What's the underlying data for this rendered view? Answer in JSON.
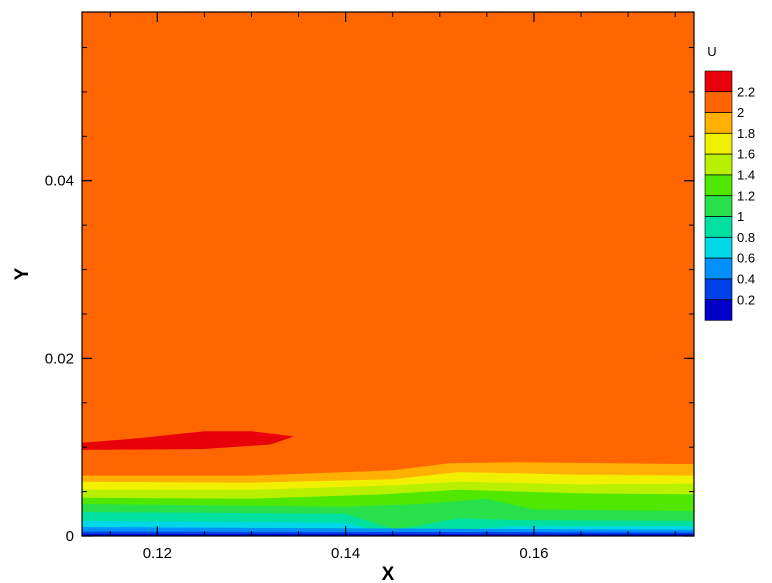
{
  "chart_data": {
    "type": "heatmap",
    "subtype": "filled-contour",
    "xlabel": "X",
    "ylabel": "Y",
    "xlim": [
      0.112,
      0.177
    ],
    "ylim": [
      0,
      0.059
    ],
    "xticks": [
      0.12,
      0.14,
      0.16
    ],
    "xtick_labels": [
      "0.12",
      "0.14",
      "0.16"
    ],
    "yticks": [
      0,
      0.02,
      0.04
    ],
    "ytick_labels": [
      "0",
      "0.02",
      "0.04"
    ],
    "grid": false,
    "legend": {
      "title": "U",
      "placement": "right",
      "levels": [
        {
          "label": "2.2",
          "color": "#e8000b"
        },
        {
          "label": "2",
          "color": "#ff6600"
        },
        {
          "label": "1.8",
          "color": "#ffb000"
        },
        {
          "label": "1.6",
          "color": "#f0f000"
        },
        {
          "label": "1.4",
          "color": "#b8f000"
        },
        {
          "label": "1.2",
          "color": "#50e800"
        },
        {
          "label": "1",
          "color": "#28e04a"
        },
        {
          "label": "0.8",
          "color": "#00e0a0"
        },
        {
          "label": "0.6",
          "color": "#00d8e8"
        },
        {
          "label": "0.4",
          "color": "#0090ff"
        },
        {
          "label": "0.2",
          "color": "#0040e8"
        },
        {
          "label": "",
          "color": "#0000c8"
        }
      ]
    },
    "field": {
      "background_level": "2",
      "bands": [
        {
          "level": "2.2",
          "polygon": [
            [
              0.112,
              0.0105
            ],
            [
              0.118,
              0.011
            ],
            [
              0.125,
              0.0118
            ],
            [
              0.13,
              0.0118
            ],
            [
              0.1345,
              0.0112
            ],
            [
              0.132,
              0.0103
            ],
            [
              0.125,
              0.0098
            ],
            [
              0.112,
              0.0097
            ]
          ]
        },
        {
          "level": "1.8",
          "polygon": [
            [
              0.112,
              0.0068
            ],
            [
              0.13,
              0.0068
            ],
            [
              0.145,
              0.0074
            ],
            [
              0.151,
              0.0082
            ],
            [
              0.158,
              0.0083
            ],
            [
              0.177,
              0.0081
            ],
            [
              0.177,
              0
            ],
            [
              0.112,
              0
            ]
          ]
        },
        {
          "level": "1.6",
          "polygon": [
            [
              0.112,
              0.0061
            ],
            [
              0.13,
              0.006
            ],
            [
              0.145,
              0.0064
            ],
            [
              0.152,
              0.0072
            ],
            [
              0.165,
              0.0069
            ],
            [
              0.177,
              0.0068
            ],
            [
              0.177,
              0
            ],
            [
              0.112,
              0
            ]
          ]
        },
        {
          "level": "1.4",
          "polygon": [
            [
              0.112,
              0.0052
            ],
            [
              0.13,
              0.0052
            ],
            [
              0.145,
              0.0057
            ],
            [
              0.152,
              0.0061
            ],
            [
              0.165,
              0.0058
            ],
            [
              0.177,
              0.0059
            ],
            [
              0.177,
              0
            ],
            [
              0.112,
              0
            ]
          ]
        },
        {
          "level": "1.2",
          "polygon": [
            [
              0.112,
              0.0043
            ],
            [
              0.13,
              0.0042
            ],
            [
              0.144,
              0.0047
            ],
            [
              0.152,
              0.0052
            ],
            [
              0.165,
              0.0048
            ],
            [
              0.177,
              0.0047
            ],
            [
              0.177,
              0
            ],
            [
              0.112,
              0
            ]
          ]
        },
        {
          "level": "1",
          "polygon": [
            [
              0.112,
              0.0036
            ],
            [
              0.14,
              0.0033
            ],
            [
              0.148,
              0.0036
            ],
            [
              0.155,
              0.0042
            ],
            [
              0.16,
              0.003
            ],
            [
              0.177,
              0.0028
            ],
            [
              0.177,
              0
            ],
            [
              0.112,
              0
            ]
          ]
        },
        {
          "level": "0.8",
          "polygon": [
            [
              0.112,
              0.0027
            ],
            [
              0.14,
              0.0025
            ],
            [
              0.145,
              0.0008
            ],
            [
              0.147,
              0.001
            ],
            [
              0.152,
              0.002
            ],
            [
              0.158,
              0.0018
            ],
            [
              0.177,
              0.0017
            ],
            [
              0.177,
              0
            ],
            [
              0.112,
              0
            ]
          ]
        },
        {
          "level": "0.6",
          "polygon": [
            [
              0.112,
              0.0017
            ],
            [
              0.14,
              0.0015
            ],
            [
              0.144,
              0.0004
            ],
            [
              0.148,
              0.0004
            ],
            [
              0.158,
              0.0011
            ],
            [
              0.177,
              0.0011
            ],
            [
              0.177,
              0
            ],
            [
              0.112,
              0
            ]
          ]
        },
        {
          "level": "0.4",
          "polygon": [
            [
              0.112,
              0.001
            ],
            [
              0.177,
              0.0007
            ],
            [
              0.177,
              0
            ],
            [
              0.112,
              0
            ]
          ]
        },
        {
          "level": "0.2",
          "polygon": [
            [
              0.112,
              0.0005
            ],
            [
              0.177,
              0.0004
            ],
            [
              0.177,
              0
            ],
            [
              0.112,
              0
            ]
          ]
        },
        {
          "level": "",
          "polygon": [
            [
              0.112,
              0.0002
            ],
            [
              0.177,
              0.0002
            ],
            [
              0.177,
              0
            ],
            [
              0.112,
              0
            ]
          ]
        }
      ]
    }
  }
}
